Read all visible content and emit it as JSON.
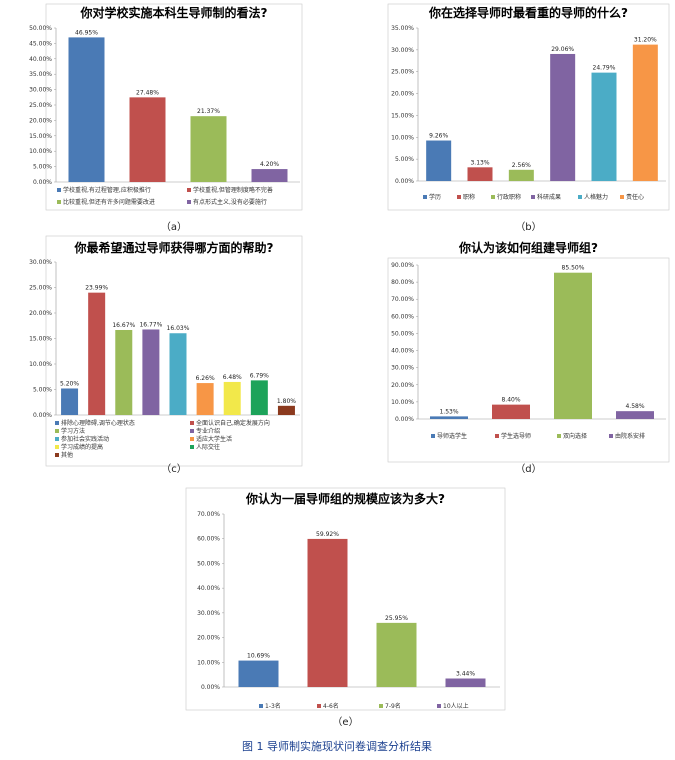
{
  "figure_caption": "图 1 导师制实施现状问卷调查分析结果",
  "chart_data": [
    {
      "id": "a",
      "type": "bar",
      "title": "你对学校实施本科生导师制的看法?",
      "caption": "（a）",
      "categories": [
        "学校重视,有过程管理,应积极推行",
        "学校重视,但管理制度略不完善",
        "比较重视,但还有许多问题需要改进",
        "有点形式主义,没有必要施行"
      ],
      "values": [
        46.95,
        27.48,
        21.37,
        4.2
      ],
      "labels": [
        "46.95%",
        "27.48%",
        "21.37%",
        "4.20%"
      ],
      "colors": [
        "#4a7ab5",
        "#c0504d",
        "#9bbb59",
        "#8064a2"
      ],
      "ylim": [
        0,
        50
      ],
      "yticks": [
        "0.00%",
        "5.00%",
        "10.00%",
        "15.00%",
        "20.00%",
        "25.00%",
        "30.00%",
        "35.00%",
        "40.00%",
        "45.00%",
        "50.00%"
      ],
      "legend": "bottom"
    },
    {
      "id": "b",
      "type": "bar",
      "title": "你在选择导师时最看重的导师的什么?",
      "caption": "（b）",
      "categories": [
        "学历",
        "职称",
        "行政职称",
        "科研成果",
        "人格魅力",
        "责任心"
      ],
      "values": [
        9.26,
        3.13,
        2.56,
        29.06,
        24.79,
        31.2
      ],
      "labels": [
        "9.26%",
        "3.13%",
        "2.56%",
        "29.06%",
        "24.79%",
        "31.20%"
      ],
      "colors": [
        "#4a7ab5",
        "#c0504d",
        "#9bbb59",
        "#8064a2",
        "#4bacc6",
        "#f79646"
      ],
      "ylim": [
        0,
        35
      ],
      "yticks": [
        "0.00%",
        "5.00%",
        "10.00%",
        "15.00%",
        "20.00%",
        "25.00%",
        "30.00%",
        "35.00%"
      ],
      "legend": "bottom"
    },
    {
      "id": "c",
      "type": "bar",
      "title": "你最希望通过导师获得哪方面的帮助?",
      "caption": "（c）",
      "categories": [
        "排除心理障碍,调节心理状态",
        "全面认识自己,确定发展方向",
        "学习方法",
        "专业介绍",
        "参加社会实践活动",
        "适应大学生活",
        "学习成绩的提高",
        "人际交往",
        "其他"
      ],
      "values": [
        5.2,
        23.99,
        16.67,
        16.77,
        16.03,
        6.26,
        6.48,
        6.79,
        1.8
      ],
      "labels": [
        "5.20%",
        "23.99%",
        "16.67%",
        "16.77%",
        "16.03%",
        "6.26%",
        "6.48%",
        "6.79%",
        "1.80%"
      ],
      "colors": [
        "#4a7ab5",
        "#c0504d",
        "#9bbb59",
        "#8064a2",
        "#4bacc6",
        "#f79646",
        "#f2e84a",
        "#1da35a",
        "#8b3a1e"
      ],
      "ylim": [
        0,
        30
      ],
      "yticks": [
        "0.00%",
        "5.00%",
        "10.00%",
        "15.00%",
        "20.00%",
        "25.00%",
        "30.00%"
      ],
      "legend": "bottom"
    },
    {
      "id": "d",
      "type": "bar",
      "title": "你认为该如何组建导师组?",
      "caption": "（d）",
      "categories": [
        "导师选学生",
        "学生选导师",
        "双向选择",
        "由院系安排"
      ],
      "values": [
        1.53,
        8.4,
        85.5,
        4.58
      ],
      "labels": [
        "1.53%",
        "8.40%",
        "85.50%",
        "4.58%"
      ],
      "colors": [
        "#4a7ab5",
        "#c0504d",
        "#9bbb59",
        "#8064a2"
      ],
      "ylim": [
        0,
        90
      ],
      "yticks": [
        "0.00%",
        "10.00%",
        "20.00%",
        "30.00%",
        "40.00%",
        "50.00%",
        "60.00%",
        "70.00%",
        "80.00%",
        "90.00%"
      ],
      "legend": "bottom"
    },
    {
      "id": "e",
      "type": "bar",
      "title": "你认为一届导师组的规模应该为多大?",
      "caption": "（e）",
      "categories": [
        "1-3名",
        "4-6名",
        "7-9名",
        "10人以上"
      ],
      "values": [
        10.69,
        59.92,
        25.95,
        3.44
      ],
      "labels": [
        "10.69%",
        "59.92%",
        "25.95%",
        "3.44%"
      ],
      "colors": [
        "#4a7ab5",
        "#c0504d",
        "#9bbb59",
        "#8064a2"
      ],
      "ylim": [
        0,
        70
      ],
      "yticks": [
        "0.00%",
        "10.00%",
        "20.00%",
        "30.00%",
        "40.00%",
        "50.00%",
        "60.00%",
        "70.00%"
      ],
      "legend": "bottom"
    }
  ]
}
